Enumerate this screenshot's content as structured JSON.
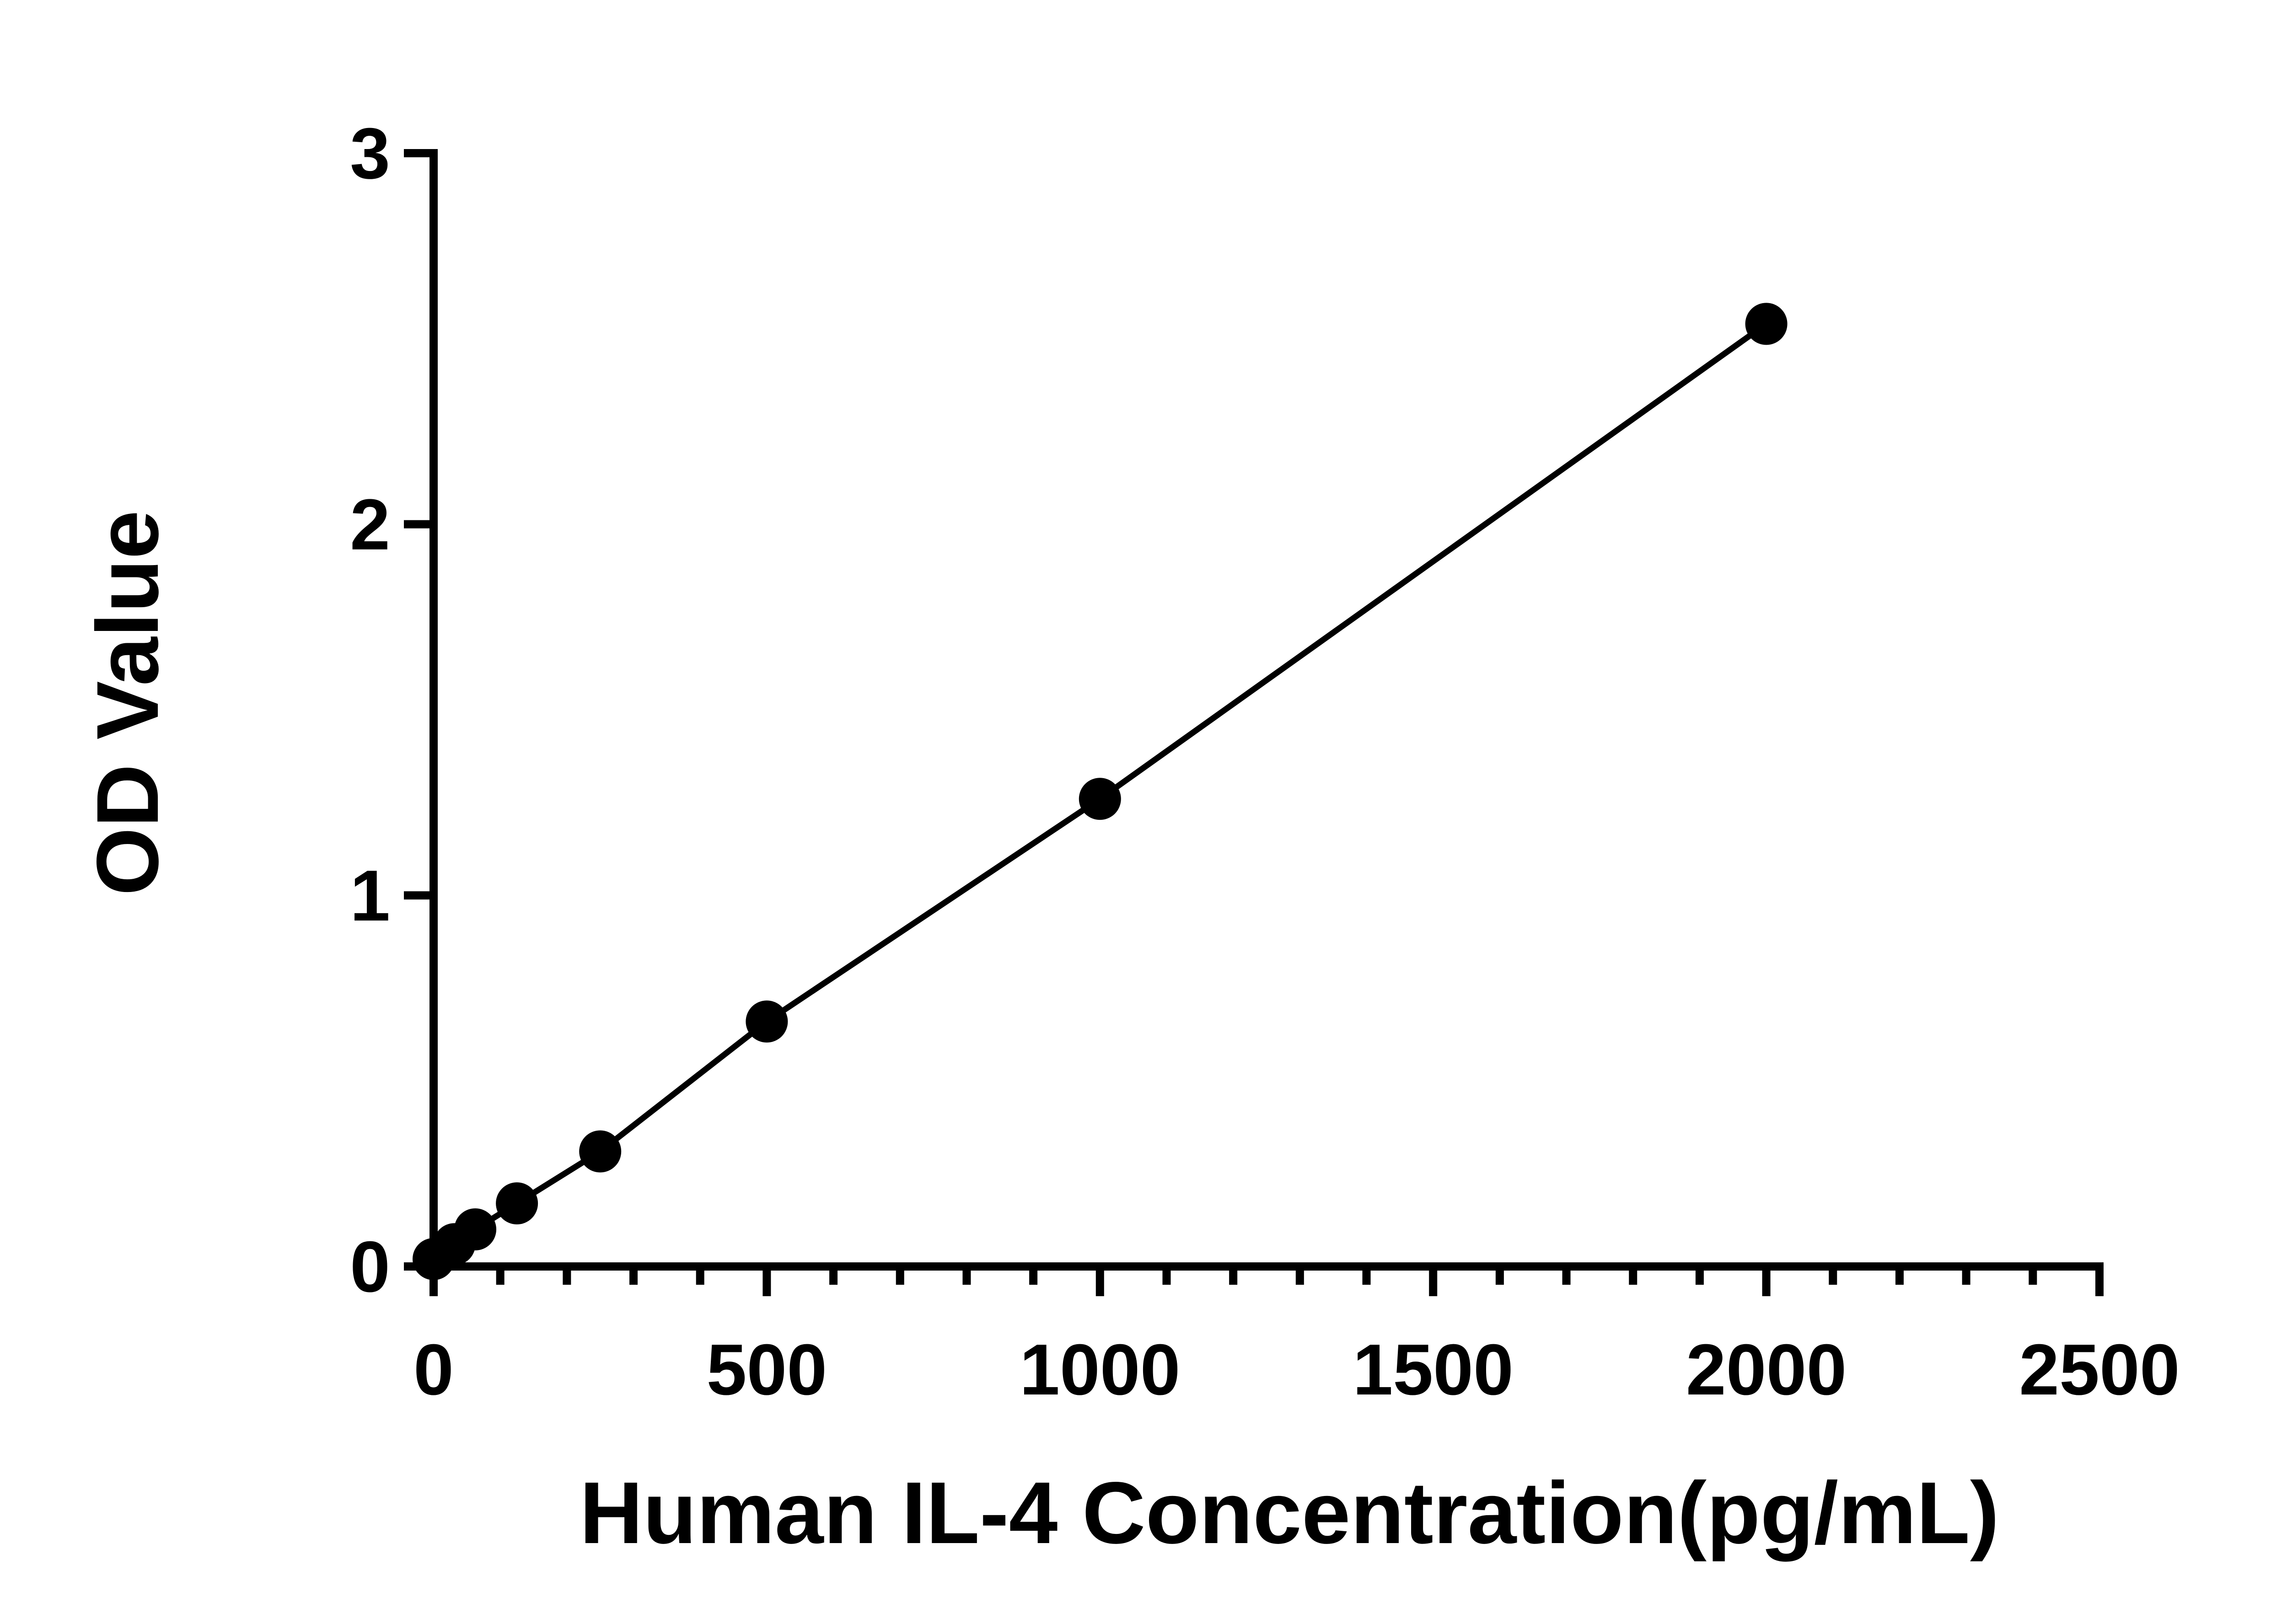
{
  "chart_data": {
    "type": "line",
    "title": "",
    "xlabel": "Human IL-4 Concentration(pg/mL)",
    "ylabel": "OD Value",
    "xlim": [
      0,
      2500
    ],
    "ylim": [
      0,
      3
    ],
    "x_ticks": [
      0,
      500,
      1000,
      1500,
      2000,
      2500
    ],
    "y_ticks": [
      0,
      1,
      2,
      3
    ],
    "x_minor_step": 100,
    "grid": false,
    "legend": "none",
    "markers": true,
    "colors": {
      "line": "#000000",
      "marker": "#000000",
      "axis": "#000000"
    },
    "series": [
      {
        "x": [
          0,
          31.25,
          62.5,
          125,
          250,
          500,
          1000,
          2000
        ],
        "y": [
          0.02,
          0.06,
          0.1,
          0.17,
          0.31,
          0.66,
          1.26,
          2.54
        ]
      }
    ]
  }
}
